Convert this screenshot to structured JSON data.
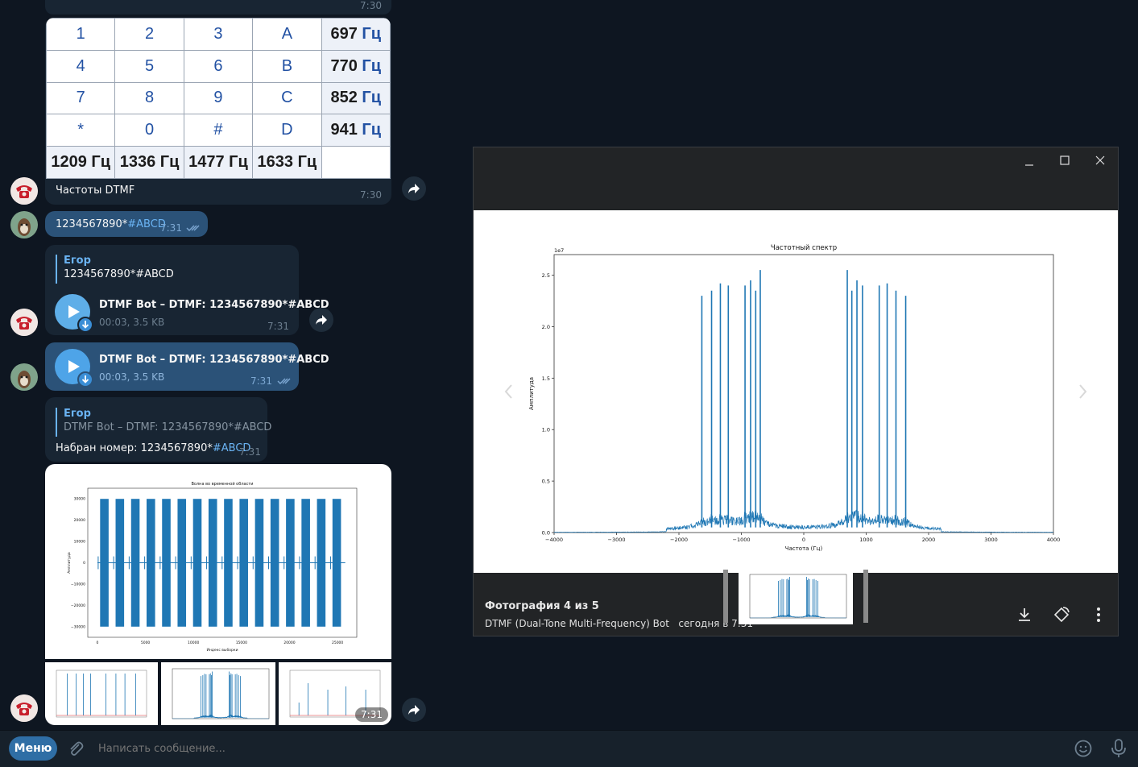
{
  "messages": {
    "top_time": "7:30",
    "dtmf_table": {
      "rows": [
        [
          "1",
          "2",
          "3",
          "A"
        ],
        [
          "4",
          "5",
          "6",
          "B"
        ],
        [
          "7",
          "8",
          "9",
          "C"
        ],
        [
          "*",
          "0",
          "#",
          "D"
        ]
      ],
      "row_freqs": [
        {
          "num": "697",
          "unit": "Гц"
        },
        {
          "num": "770",
          "unit": "Гц"
        },
        {
          "num": "852",
          "unit": "Гц"
        },
        {
          "num": "941",
          "unit": "Гц"
        }
      ],
      "col_freqs": [
        "1209 Гц",
        "1336 Гц",
        "1477 Гц",
        "1633 Гц"
      ]
    },
    "dtmf_caption": "Частоты DTMF",
    "dtmf_time": "7:30",
    "sent_digits": "1234567890*",
    "sent_tag": "#ABCD",
    "sent_time": "7:31",
    "reply1_name": "Егор",
    "reply1_text": "1234567890*#ABCD",
    "audio1_title": "DTMF Bot – DTMF: 1234567890*#ABCD",
    "audio1_meta": "00:03, 3.5 KB",
    "audio1_time": "7:31",
    "audio2_title": "DTMF Bot – DTMF: 1234567890*#ABCD",
    "audio2_meta": "00:03, 3.5 KB",
    "audio2_time": "7:31",
    "reply2_name": "Егор",
    "reply2_text": "DTMF Bot – DTMF: 1234567890*#ABCD",
    "dialed_prefix": "Набран номер: 1234567890*",
    "dialed_tag": "#ABCD",
    "dialed_time": "7:31",
    "wave_title": "Волна во временной области",
    "wave_xlabel": "Индекс выборки",
    "wave_ylabel": "Амплитуда",
    "album_time": "7:31"
  },
  "viewer": {
    "counter": "Фотография 4 из 5",
    "source": "DTMF (Dual-Tone Multi-Frequency) Bot",
    "date": "сегодня в 7:31"
  },
  "chart_data": [
    {
      "type": "line",
      "title": "Частотный спектр",
      "xlabel": "Частота (Гц)",
      "ylabel": "Амплитуда",
      "y_scale_label": "1e7",
      "xlim": [
        -4000,
        4000
      ],
      "ylim": [
        0,
        2.7
      ],
      "x_ticks": [
        -4000,
        -3000,
        -2000,
        -1000,
        0,
        1000,
        2000,
        3000,
        4000
      ],
      "y_ticks": [
        0.0,
        0.5,
        1.0,
        1.5,
        2.0,
        2.5
      ],
      "peaks": {
        "x": [
          -1633,
          -1477,
          -1336,
          -1209,
          -941,
          -852,
          -770,
          -697,
          697,
          770,
          852,
          941,
          1209,
          1336,
          1477,
          1633
        ],
        "y": [
          2.3,
          2.35,
          2.42,
          2.4,
          2.4,
          2.45,
          2.35,
          2.55,
          2.55,
          2.35,
          2.45,
          2.4,
          2.4,
          2.42,
          2.35,
          2.3
        ]
      },
      "legend": "none",
      "grid": false
    },
    {
      "type": "line",
      "title": "Волна во временной области",
      "xlabel": "Индекс выборки",
      "ylabel": "Амплитуда",
      "xlim": [
        -1000,
        27000
      ],
      "ylim": [
        -35000,
        35000
      ],
      "x_ticks": [
        0,
        5000,
        10000,
        15000,
        20000,
        25000
      ],
      "y_ticks": [
        -30000,
        -20000,
        -10000,
        0,
        10000,
        20000,
        30000
      ],
      "bursts": 16,
      "burst_amplitude": 30000,
      "legend": "none",
      "grid": false
    }
  ],
  "composer": {
    "menu_label": "Меню",
    "placeholder": "Написать сообщение..."
  },
  "colors": {
    "background": "#0e1621",
    "bubble_in": "#182533",
    "bubble_out": "#2b5278",
    "accent": "#6ab3f3",
    "plot_line": "#1f77b4"
  }
}
